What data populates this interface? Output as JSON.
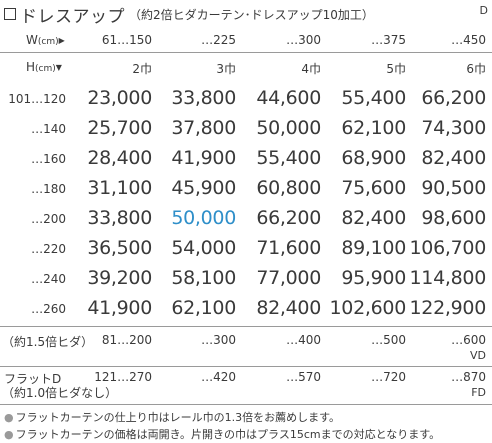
{
  "title": {
    "main": "ドレスアップ",
    "note": "（約2倍ヒダカーテン･ドレスアップ10加工）",
    "tag": "D"
  },
  "width_header": {
    "label": "W",
    "unit": "(cm)",
    "values": [
      "61…150",
      "…225",
      "…300",
      "…375",
      "…450"
    ]
  },
  "height_header": {
    "label": "H",
    "unit": "(cm)",
    "panels": [
      "2巾",
      "3巾",
      "4巾",
      "5巾",
      "6巾"
    ]
  },
  "price_rows": [
    {
      "height": "101…120",
      "prices": [
        "23,000",
        "33,800",
        "44,600",
        "55,400",
        "66,200"
      ]
    },
    {
      "height": "…140",
      "prices": [
        "25,700",
        "37,800",
        "50,000",
        "62,100",
        "74,300"
      ]
    },
    {
      "height": "…160",
      "prices": [
        "28,400",
        "41,900",
        "55,400",
        "68,900",
        "82,400"
      ]
    },
    {
      "height": "…180",
      "prices": [
        "31,100",
        "45,900",
        "60,800",
        "75,600",
        "90,500"
      ]
    },
    {
      "height": "…200",
      "prices": [
        "33,800",
        "50,000",
        "66,200",
        "82,400",
        "98,600"
      ]
    },
    {
      "height": "…220",
      "prices": [
        "36,500",
        "54,000",
        "71,600",
        "89,100",
        "106,700"
      ]
    },
    {
      "height": "…240",
      "prices": [
        "39,200",
        "58,100",
        "77,000",
        "95,900",
        "114,800"
      ]
    },
    {
      "height": "…260",
      "prices": [
        "41,900",
        "62,100",
        "82,400",
        "102,600",
        "122,900"
      ]
    }
  ],
  "pleat15": {
    "label": "（約1.5倍ヒダ）",
    "values": [
      "81…200",
      "…300",
      "…400",
      "…500",
      "…600"
    ],
    "tag": "VD"
  },
  "flat": {
    "label1": "フラットD",
    "label2": "（約1.0倍ヒダなし）",
    "values": [
      "121…270",
      "…420",
      "…570",
      "…720",
      "…870"
    ],
    "tag": "FD"
  },
  "notes": [
    "フラットカーテンの仕上り巾はレール巾の1.3倍をお薦めします。",
    "フラットカーテンの価格は両開き。片開きの巾はプラス15cmまでの対応となります。"
  ],
  "colors": {
    "text": "#3a3a3a",
    "highlight": "#2f8fc9",
    "rule": "#9a9a9a"
  }
}
